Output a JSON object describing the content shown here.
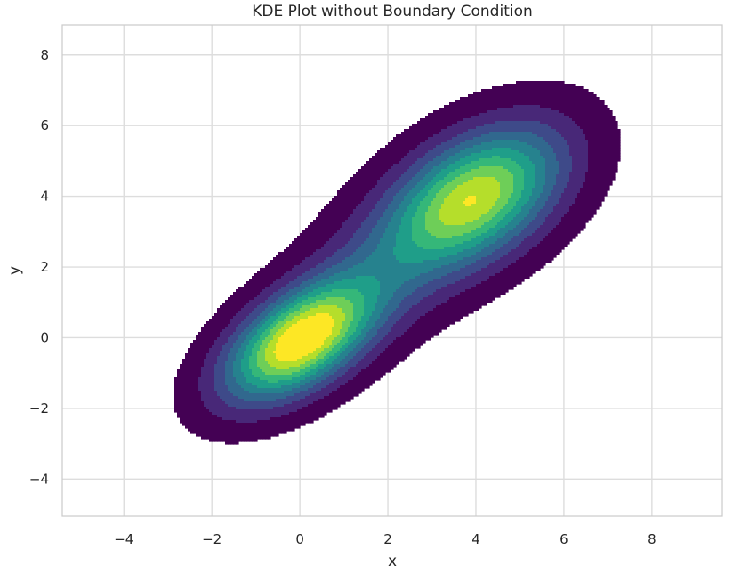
{
  "chart_data": {
    "type": "contour",
    "title": "KDE Plot without Boundary Condition",
    "xlabel": "x",
    "ylabel": "y",
    "xlim": [
      -5.4,
      9.6
    ],
    "ylim": [
      -5.05,
      8.85
    ],
    "xticks": [
      -4,
      -2,
      0,
      2,
      4,
      6,
      8
    ],
    "yticks": [
      -4,
      -2,
      0,
      2,
      4,
      6,
      8
    ],
    "xtick_labels": [
      "−4",
      "−2",
      "0",
      "2",
      "4",
      "6",
      "8"
    ],
    "ytick_labels": [
      "−4",
      "−2",
      "0",
      "2",
      "4",
      "6",
      "8"
    ],
    "grid": true,
    "colormap": "viridis",
    "filled": true,
    "levels": 10,
    "density_peaks": [
      {
        "x": 0.0,
        "y": -0.1,
        "relative_density": 1.0
      },
      {
        "x": 4.0,
        "y": 4.0,
        "relative_density": 0.88
      }
    ],
    "density_support": {
      "x": [
        -3.0,
        6.6
      ],
      "y": [
        -2.8,
        7.0
      ]
    }
  }
}
